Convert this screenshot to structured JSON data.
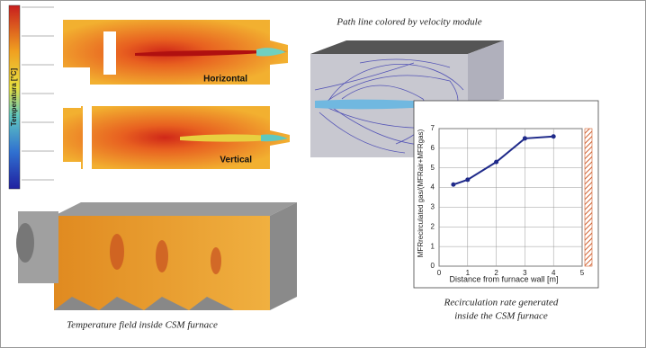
{
  "temperature_label": "Temperatura [°C]",
  "horizontal_label": "Horizontal",
  "vertical_label": "Vertical",
  "temperature_caption": "Temperature field inside CSM furnace",
  "pathline_caption": "Path line colored by velocity module",
  "chart_data": {
    "type": "line",
    "caption_lines": [
      "Recirculation rate generated",
      "inside the CSM furnace"
    ],
    "x_label": "Distance from furnace wall [m]",
    "y_label": "MFRrecirculated gas/(MFRair+MFRgas)",
    "x": [
      0.5,
      1,
      2,
      3,
      4
    ],
    "series": [
      {
        "color": "#1f2a8a",
        "values": [
          4.15,
          4.4,
          5.3,
          6.5,
          6.6
        ]
      }
    ],
    "xlim": [
      0,
      5
    ],
    "xticks": [
      0,
      1,
      2,
      3,
      4,
      5
    ],
    "ylim": [
      0,
      7
    ],
    "yticks": [
      0,
      1,
      2,
      3,
      4,
      5,
      6,
      7
    ],
    "grid": true
  }
}
